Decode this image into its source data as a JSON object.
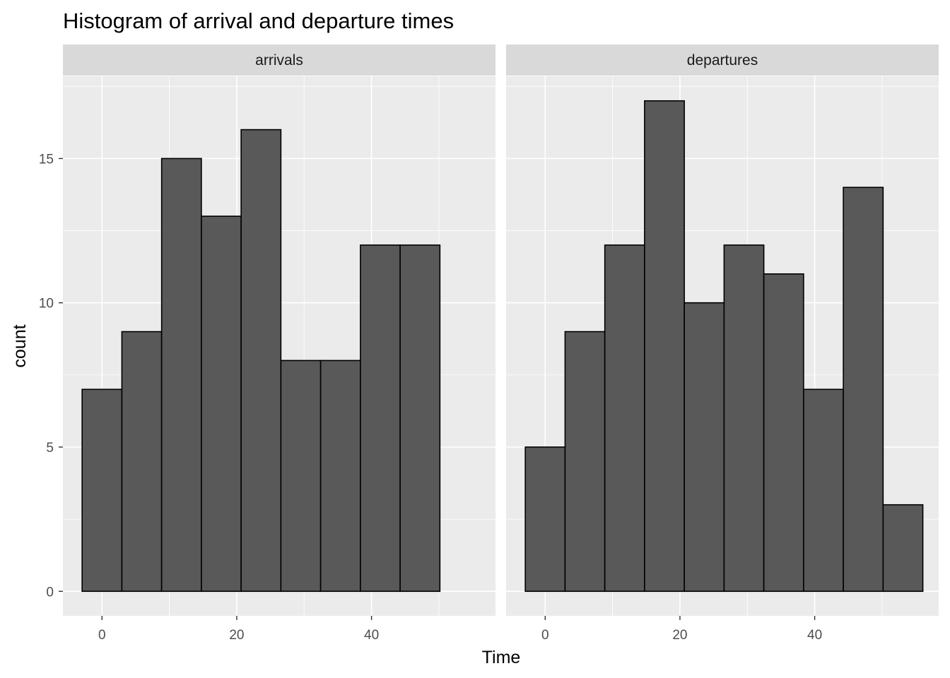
{
  "chart_data": {
    "type": "bar",
    "subtype": "faceted-histogram",
    "title": "Histogram of arrival and departure times",
    "xlabel": "Time",
    "ylabel": "count",
    "xlim": [
      -5.8,
      58.4
    ],
    "ylim": [
      -0.85,
      17.85
    ],
    "x_ticks": [
      0,
      20,
      40
    ],
    "y_ticks": [
      0,
      5,
      10,
      15
    ],
    "grid": true,
    "colors": {
      "panel_background": "#ebebeb",
      "strip_background": "#d9d9d9",
      "bar_fill": "#595959",
      "bar_outline": "#000000",
      "grid": "#ffffff"
    },
    "bins": [
      {
        "x0": -2.95,
        "x1": 2.95
      },
      {
        "x0": 2.95,
        "x1": 8.85
      },
      {
        "x0": 8.85,
        "x1": 14.75
      },
      {
        "x0": 14.75,
        "x1": 20.65
      },
      {
        "x0": 20.65,
        "x1": 26.55
      },
      {
        "x0": 26.55,
        "x1": 32.45
      },
      {
        "x0": 32.45,
        "x1": 38.35
      },
      {
        "x0": 38.35,
        "x1": 44.25
      },
      {
        "x0": 44.25,
        "x1": 50.15
      },
      {
        "x0": 50.15,
        "x1": 56.05
      }
    ],
    "facets": [
      {
        "name": "arrivals",
        "values": [
          7,
          9,
          15,
          13,
          16,
          8,
          8,
          12,
          12,
          0
        ]
      },
      {
        "name": "departures",
        "values": [
          5,
          9,
          12,
          17,
          10,
          12,
          11,
          7,
          14,
          3
        ]
      }
    ]
  }
}
